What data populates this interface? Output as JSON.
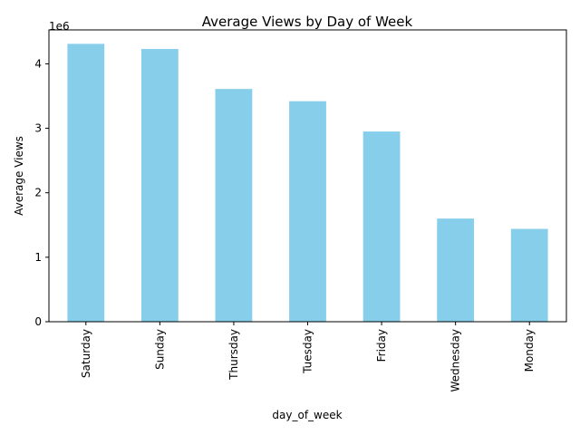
{
  "chart_data": {
    "type": "bar",
    "title": "Average Views by Day of Week",
    "xlabel": "day_of_week",
    "ylabel": "Average Views",
    "y_offset_label": "1e6",
    "categories": [
      "Saturday",
      "Sunday",
      "Thursday",
      "Tuesday",
      "Friday",
      "Wednesday",
      "Monday"
    ],
    "values": [
      4310000,
      4230000,
      3610000,
      3420000,
      2950000,
      1600000,
      1440000
    ],
    "ylim": [
      0,
      4526000
    ],
    "yticks": [
      0,
      1000000,
      2000000,
      3000000,
      4000000
    ],
    "ytick_labels": [
      "0",
      "1",
      "2",
      "3",
      "4"
    ],
    "bar_color": "#87ceeb",
    "grid": false,
    "legend": "none"
  }
}
